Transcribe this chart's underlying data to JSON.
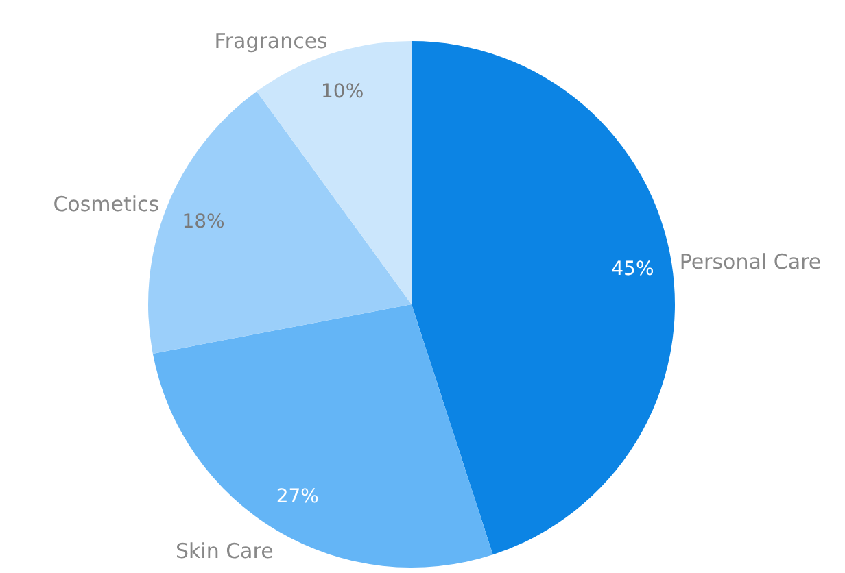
{
  "chart_data": {
    "type": "pie",
    "categories": [
      "Personal Care",
      "Skin Care",
      "Cosmetics",
      "Fragrances"
    ],
    "values": [
      45,
      27,
      18,
      10
    ],
    "colors": [
      "#0c84e4",
      "#64b5f6",
      "#9bcffa",
      "#cbe6fc"
    ],
    "value_labels": [
      "45%",
      "27%",
      "18%",
      "10%"
    ]
  }
}
